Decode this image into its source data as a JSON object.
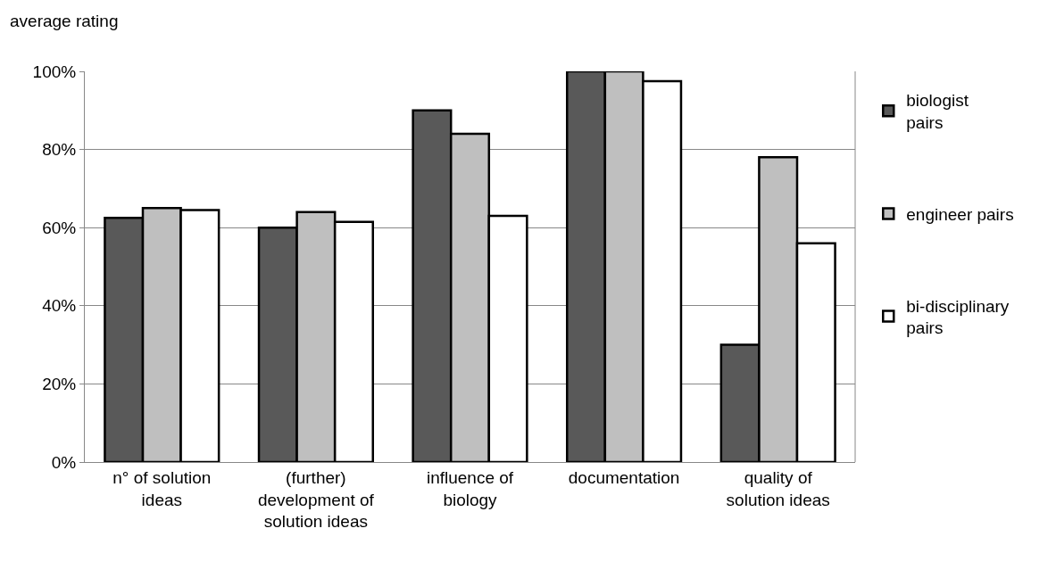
{
  "chart_data": {
    "type": "bar",
    "ylabel": "average rating",
    "categories": [
      "n° of solution ideas",
      "(further) development of solution ideas",
      "influence of biology",
      "documentation",
      "quality of solution ideas"
    ],
    "series": [
      {
        "name": "biologist pairs",
        "color": "#595959",
        "values": [
          62.5,
          60,
          90,
          100,
          30
        ]
      },
      {
        "name": "engineer pairs",
        "color": "#bfbfbf",
        "values": [
          65,
          64,
          84,
          100,
          78
        ]
      },
      {
        "name": "bi-disciplinary pairs",
        "color": "#ffffff",
        "values": [
          64.5,
          61.5,
          63,
          97.5,
          56
        ]
      }
    ],
    "ylim": [
      0,
      100
    ],
    "yticks": [
      {
        "value": 0,
        "label": "0%"
      },
      {
        "value": 20,
        "label": "20%"
      },
      {
        "value": 40,
        "label": "40%"
      },
      {
        "value": 60,
        "label": "60%"
      },
      {
        "value": 80,
        "label": "80%"
      },
      {
        "value": 100,
        "label": "100%"
      }
    ],
    "grid": "y",
    "legend": "right"
  }
}
